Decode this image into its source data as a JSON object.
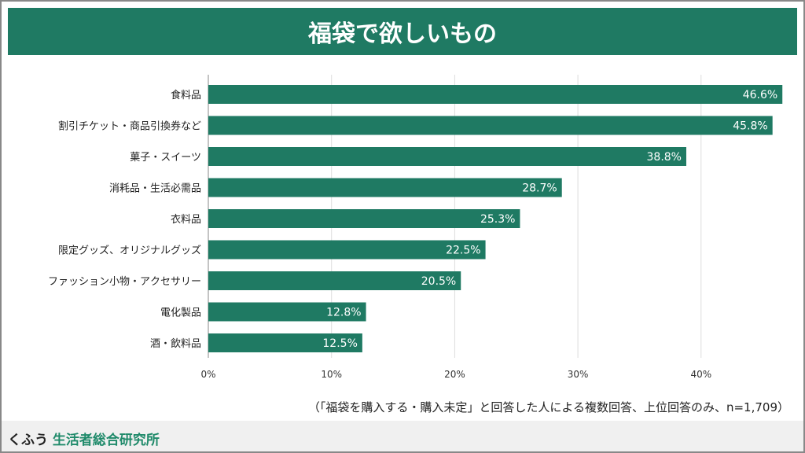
{
  "chart_data": {
    "type": "bar",
    "orientation": "horizontal",
    "title": "福袋で欲しいもの",
    "categories": [
      "食料品",
      "割引チケット・商品引換券など",
      "菓子・スイーツ",
      "消耗品・生活必需品",
      "衣料品",
      "限定グッズ、オリジナルグッズ",
      "ファッション小物・アクセサリー",
      "電化製品",
      "酒・飲料品"
    ],
    "values": [
      46.6,
      45.8,
      38.8,
      28.7,
      25.3,
      22.5,
      20.5,
      12.8,
      12.5
    ],
    "value_labels": [
      "46.6%",
      "45.8%",
      "38.8%",
      "28.7%",
      "25.3%",
      "22.5%",
      "20.5%",
      "12.8%",
      "12.5%"
    ],
    "xticks": [
      "0%",
      "10%",
      "20%",
      "30%",
      "40%"
    ],
    "xlim": [
      0,
      47
    ],
    "grid": true,
    "bar_color": "#1f7a63",
    "note": "（「福袋を購入する・購入未定」と回答した人による複数回答、上位回答のみ、n=1,709）"
  },
  "footer": {
    "brand_prefix": "くふう",
    "brand_name": "生活者総合研究所"
  }
}
